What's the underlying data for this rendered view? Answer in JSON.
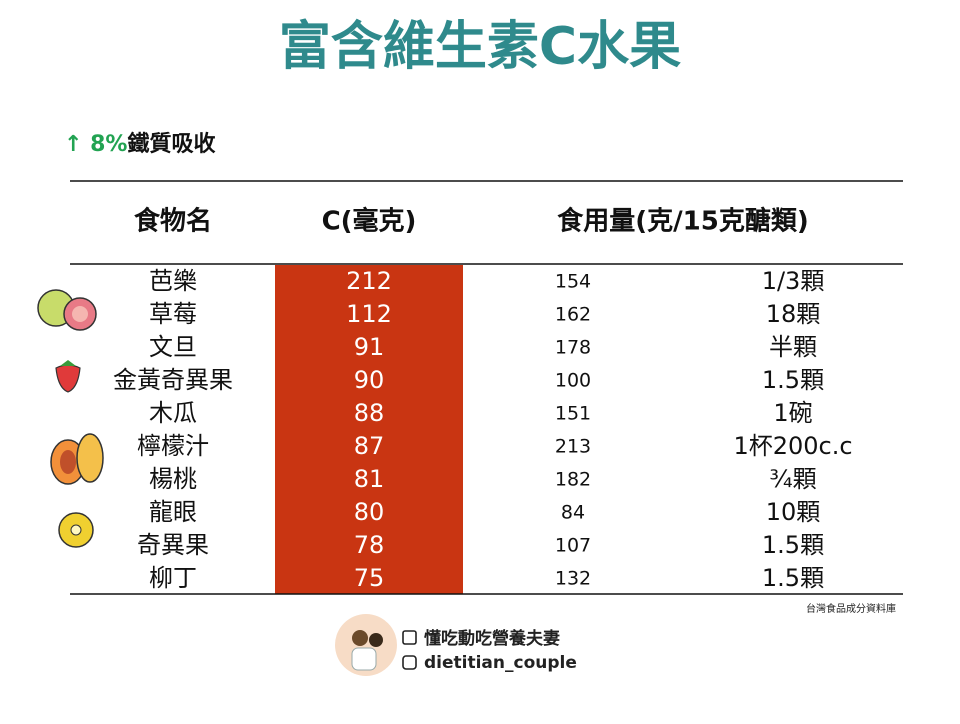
{
  "header": {
    "title": "富含維生素C水果",
    "note_highlight": "↑ 8%",
    "note_text": "鐵質吸收"
  },
  "table": {
    "columns": [
      "食物名",
      "C(毫克)",
      "食用量(克/15克醣類)"
    ],
    "rows": [
      [
        "芭樂",
        212,
        154,
        "1/3顆"
      ],
      [
        "草莓",
        112,
        162,
        "18顆"
      ],
      [
        "文旦",
        91,
        178,
        "半顆"
      ],
      [
        "金黃奇異果",
        90,
        100,
        "1.5顆"
      ],
      [
        "木瓜",
        88,
        151,
        "1碗"
      ],
      [
        "檸檬汁",
        87,
        213,
        "1杯200c.c"
      ],
      [
        "楊桃",
        81,
        182,
        "¾顆"
      ],
      [
        "龍眼",
        80,
        84,
        "10顆"
      ],
      [
        "奇異果",
        78,
        107,
        "1.5顆"
      ],
      [
        "柳丁",
        75,
        132,
        "1.5顆"
      ]
    ]
  },
  "source": "台灣食品成分資料庫",
  "footer": {
    "facebook": "懂吃動吃營養夫妻",
    "instagram": "dietitian_couple"
  }
}
